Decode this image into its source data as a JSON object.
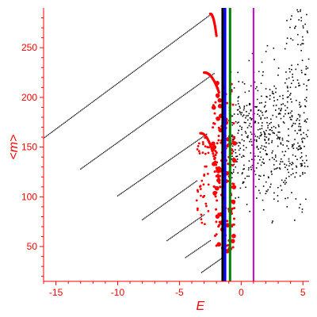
{
  "chart_data": {
    "type": "scatter",
    "title": "",
    "xlabel": "E",
    "ylabel": "<m>",
    "xlim": [
      -16.0,
      5.5
    ],
    "ylim": [
      15,
      290
    ],
    "xticks": [
      -15,
      -10,
      -5,
      0,
      5
    ],
    "yticks": [
      50,
      100,
      150,
      200,
      250
    ],
    "grid": false,
    "axis_color": "#ff0000",
    "series": [
      {
        "color": "#000000",
        "marker": "dot",
        "segments": [
          {
            "x_start": -16.0,
            "y_start": 159,
            "x_end": -2.4,
            "y_end": 284
          },
          {
            "x_start": -13.0,
            "y_start": 128,
            "x_end": -2.2,
            "y_end": 224
          },
          {
            "x_start": -10.0,
            "y_start": 101,
            "x_end": -2.8,
            "y_end": 163
          },
          {
            "x_start": -8.0,
            "y_start": 77,
            "x_end": -3.6,
            "y_end": 116
          },
          {
            "x_start": -6.0,
            "y_start": 56,
            "x_end": -3.0,
            "y_end": 82
          },
          {
            "x_start": -4.5,
            "y_start": 39,
            "x_end": -2.5,
            "y_end": 56
          },
          {
            "x_start": -3.2,
            "y_start": 24,
            "x_end": -1.6,
            "y_end": 38
          }
        ],
        "cloud": {
          "x_range": [
            -1.0,
            5.5
          ],
          "y_range": [
            58,
            290
          ]
        }
      },
      {
        "color": "#ff0000",
        "marker": "dot",
        "arcs": [
          {
            "x_start": -2.5,
            "y_peak": 284,
            "x_end": -2.0,
            "y_end": 262
          },
          {
            "x_start": -3.0,
            "y_peak": 225,
            "x_end": -1.8,
            "y_end": 205
          },
          {
            "x_start": -3.3,
            "y_peak": 164,
            "x_end": -1.7,
            "y_end": 110
          }
        ],
        "band": {
          "x_range": [
            -2.3,
            -0.5
          ],
          "y_range": [
            45,
            215
          ]
        }
      }
    ],
    "vertical_lines": [
      {
        "x": -1.5,
        "color": "#000000"
      },
      {
        "x": -1.3,
        "color": "#0000ff"
      },
      {
        "x": -0.9,
        "color": "#008000"
      },
      {
        "x": 1.0,
        "color": "#cc00cc"
      }
    ]
  }
}
